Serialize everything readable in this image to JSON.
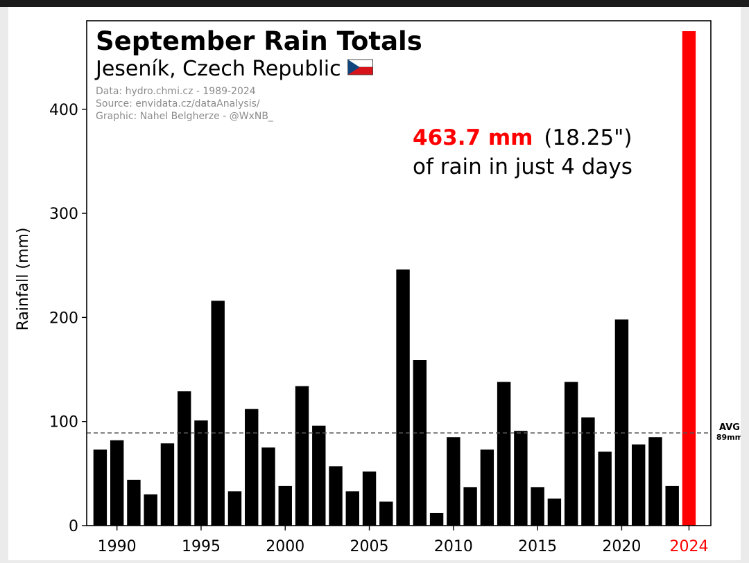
{
  "chart_data": {
    "type": "bar",
    "title": "September Rain Totals",
    "subtitle": "Jeseník, Czech Republic",
    "credits": [
      "Data: hydro.chmi.cz - 1989-2024",
      "Source: envidata.cz/dataAnalysis/",
      "Graphic: Nahel Belgherze - @WxNB_"
    ],
    "ylabel": "Rainfall (mm)",
    "ylim": [
      0,
      485
    ],
    "yticks": [
      0,
      100,
      200,
      300,
      400
    ],
    "xlim": [
      1988.2,
      2025.3
    ],
    "xticks": [
      1990,
      1995,
      2000,
      2005,
      2010,
      2015,
      2020,
      2024
    ],
    "highlight_year": 2024,
    "x": [
      1989,
      1990,
      1991,
      1992,
      1993,
      1994,
      1995,
      1996,
      1997,
      1998,
      1999,
      2000,
      2001,
      2002,
      2003,
      2004,
      2005,
      2006,
      2007,
      2008,
      2009,
      2010,
      2011,
      2012,
      2013,
      2014,
      2015,
      2016,
      2017,
      2018,
      2019,
      2020,
      2021,
      2022,
      2023,
      2024
    ],
    "values": [
      73,
      82,
      44,
      30,
      79,
      129,
      101,
      216,
      33,
      112,
      75,
      38,
      134,
      96,
      57,
      33,
      52,
      23,
      246,
      159,
      12,
      85,
      37,
      73,
      138,
      91,
      37,
      26,
      138,
      104,
      71,
      198,
      78,
      85,
      38,
      475
    ],
    "average": {
      "value": 89,
      "label": "AVG",
      "value_label": "89mm"
    },
    "annotation": {
      "highlight": "463.7 mm",
      "inches": "(18.25\")",
      "line2": "of rain in just 4 days"
    },
    "colors": {
      "bars": "#000000",
      "highlight": "#ff0000",
      "avg_line": "#555555"
    },
    "grid": false,
    "legend": "none"
  }
}
